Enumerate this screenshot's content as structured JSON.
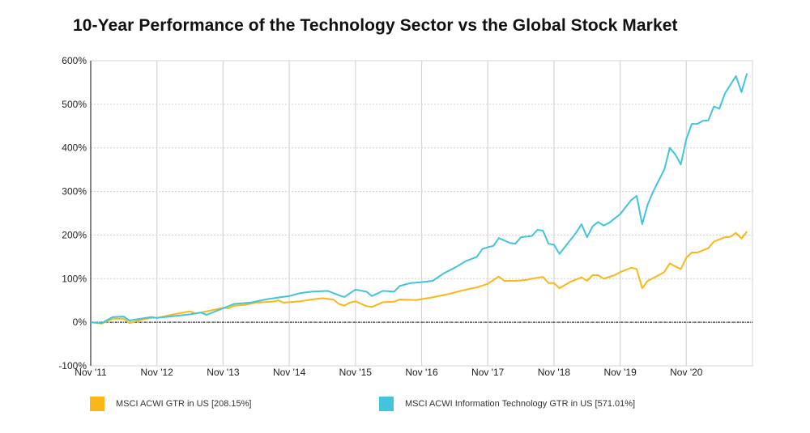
{
  "chart_data": {
    "type": "line",
    "title": "10-Year Performance of the Technology Sector vs the Global Stock Market",
    "xlabel": "",
    "ylabel": "",
    "ylim": [
      -100,
      600
    ],
    "yticks": [
      "-100%",
      "0%",
      "100%",
      "200%",
      "300%",
      "400%",
      "500%",
      "600%"
    ],
    "ytick_values": [
      -100,
      0,
      100,
      200,
      300,
      400,
      500,
      600
    ],
    "xticks": [
      "Nov '11",
      "Nov '12",
      "Nov '13",
      "Nov '14",
      "Nov '15",
      "Nov '16",
      "Nov '17",
      "Nov '18",
      "Nov '19",
      "Nov '20"
    ],
    "xtick_dates": [
      "2011-11",
      "2012-11",
      "2013-11",
      "2014-11",
      "2015-11",
      "2016-11",
      "2017-11",
      "2018-11",
      "2019-11",
      "2020-11"
    ],
    "xlim": [
      "2011-11",
      "2021-11"
    ],
    "grid": true,
    "legend_position": "bottom",
    "series": [
      {
        "name": "MSCI ACWI GTR in US [208.15%]",
        "color": "#FBB617",
        "x": [
          "2011-11",
          "2012-01",
          "2012-03",
          "2012-05",
          "2012-06",
          "2012-08",
          "2012-10",
          "2012-11",
          "2013-02",
          "2013-05",
          "2013-06",
          "2013-08",
          "2013-11",
          "2013-12",
          "2014-01",
          "2014-03",
          "2014-05",
          "2014-08",
          "2014-09",
          "2014-10",
          "2014-11",
          "2015-01",
          "2015-03",
          "2015-05",
          "2015-07",
          "2015-08",
          "2015-09",
          "2015-10",
          "2015-11",
          "2016-01",
          "2016-02",
          "2016-04",
          "2016-06",
          "2016-07",
          "2016-10",
          "2016-11",
          "2017-01",
          "2017-04",
          "2017-07",
          "2017-09",
          "2017-11",
          "2018-01",
          "2018-02",
          "2018-04",
          "2018-06",
          "2018-07",
          "2018-09",
          "2018-10",
          "2018-11",
          "2018-12",
          "2019-02",
          "2019-04",
          "2019-05",
          "2019-06",
          "2019-07",
          "2019-08",
          "2019-10",
          "2019-11",
          "2020-01",
          "2020-02",
          "2020-03",
          "2020-04",
          "2020-06",
          "2020-07",
          "2020-08",
          "2020-09",
          "2020-10",
          "2020-11",
          "2020-12",
          "2021-01",
          "2021-03",
          "2021-04",
          "2021-06",
          "2021-07",
          "2021-08",
          "2021-09",
          "2021-10"
        ],
        "values": [
          0,
          -3,
          8,
          8,
          -2,
          5,
          10,
          10,
          18,
          25,
          20,
          25,
          33,
          32,
          38,
          40,
          45,
          47,
          50,
          45,
          46,
          48,
          52,
          55,
          52,
          42,
          38,
          45,
          48,
          37,
          35,
          46,
          47,
          52,
          51,
          53,
          57,
          65,
          75,
          80,
          88,
          105,
          95,
          95,
          97,
          100,
          104,
          90,
          90,
          78,
          93,
          103,
          95,
          108,
          108,
          100,
          108,
          115,
          125,
          122,
          78,
          95,
          108,
          115,
          135,
          128,
          122,
          148,
          160,
          160,
          170,
          185,
          195,
          196,
          205,
          192,
          208.15
        ]
      },
      {
        "name": "MSCI ACWI Information Technology GTR in US [571.01%]",
        "color": "#41C4DC",
        "x": [
          "2011-11",
          "2012-01",
          "2012-03",
          "2012-05",
          "2012-06",
          "2012-08",
          "2012-10",
          "2012-11",
          "2013-02",
          "2013-05",
          "2013-07",
          "2013-08",
          "2013-11",
          "2014-01",
          "2014-04",
          "2014-07",
          "2014-11",
          "2015-01",
          "2015-03",
          "2015-06",
          "2015-08",
          "2015-09",
          "2015-11",
          "2016-01",
          "2016-02",
          "2016-04",
          "2016-06",
          "2016-07",
          "2016-09",
          "2016-11",
          "2017-01",
          "2017-03",
          "2017-05",
          "2017-07",
          "2017-09",
          "2017-10",
          "2017-11",
          "2017-12",
          "2018-01",
          "2018-03",
          "2018-04",
          "2018-05",
          "2018-07",
          "2018-08",
          "2018-09",
          "2018-10",
          "2018-11",
          "2018-12",
          "2019-03",
          "2019-04",
          "2019-05",
          "2019-06",
          "2019-07",
          "2019-08",
          "2019-09",
          "2019-11",
          "2020-01",
          "2020-02",
          "2020-03",
          "2020-04",
          "2020-05",
          "2020-07",
          "2020-08",
          "2020-09",
          "2020-10",
          "2020-11",
          "2020-12",
          "2021-01",
          "2021-02",
          "2021-03",
          "2021-04",
          "2021-05",
          "2021-06",
          "2021-08",
          "2021-09",
          "2021-10"
        ],
        "values": [
          0,
          -2,
          12,
          13,
          4,
          8,
          12,
          10,
          14,
          18,
          22,
          17,
          32,
          42,
          45,
          53,
          60,
          67,
          70,
          72,
          62,
          58,
          75,
          70,
          60,
          72,
          70,
          83,
          90,
          92,
          95,
          112,
          125,
          140,
          150,
          168,
          172,
          175,
          193,
          182,
          180,
          195,
          198,
          212,
          210,
          180,
          178,
          157,
          205,
          225,
          195,
          220,
          230,
          222,
          228,
          248,
          280,
          290,
          225,
          270,
          300,
          350,
          400,
          385,
          362,
          420,
          455,
          455,
          462,
          463,
          495,
          490,
          525,
          565,
          528,
          571.01
        ]
      }
    ]
  }
}
